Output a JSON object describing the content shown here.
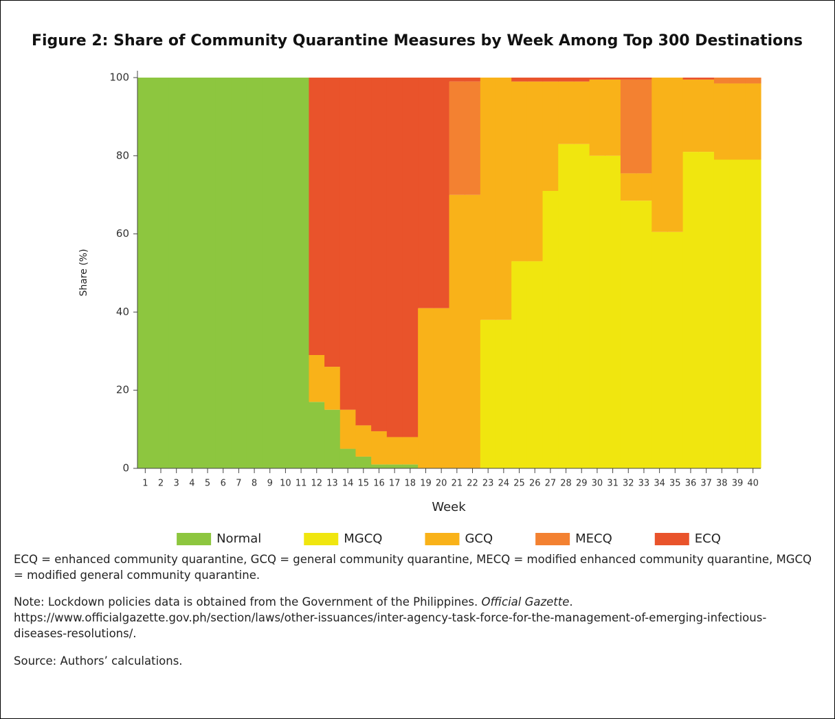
{
  "chart_data": {
    "type": "stacked_step_area",
    "title": "Figure 2: Share of Community Quarantine Measures by Week Among Top 300 Destinations",
    "x_label": "Week",
    "y_label": "Share (%)",
    "categories": [
      "1",
      "2",
      "3",
      "4",
      "5",
      "6",
      "7",
      "8",
      "9",
      "10",
      "11",
      "12",
      "13",
      "14",
      "15",
      "16",
      "17",
      "18",
      "19",
      "20",
      "21",
      "22",
      "23",
      "24",
      "25",
      "26",
      "27",
      "28",
      "29",
      "30",
      "31",
      "32",
      "33",
      "34",
      "35",
      "36",
      "37",
      "38",
      "39",
      "40"
    ],
    "ylim": [
      0,
      100
    ],
    "yticks": [
      0,
      20,
      40,
      60,
      80,
      100
    ],
    "series": [
      {
        "name": "Normal",
        "color": "#8dc63f",
        "values": [
          100,
          100,
          100,
          100,
          100,
          100,
          100,
          100,
          100,
          100,
          100,
          17,
          15,
          5,
          3,
          1,
          1,
          1,
          0,
          0,
          0,
          0,
          0,
          0,
          0,
          0,
          0,
          0,
          0,
          0,
          0,
          0,
          0,
          0,
          0,
          0,
          0,
          0,
          0,
          0
        ]
      },
      {
        "name": "MGCQ",
        "color": "#f0e60f",
        "values": [
          0,
          0,
          0,
          0,
          0,
          0,
          0,
          0,
          0,
          0,
          0,
          0,
          0,
          0,
          0,
          0,
          0,
          0,
          0,
          0,
          0,
          0,
          38,
          38,
          53,
          53,
          71,
          83,
          83,
          80,
          80,
          68.5,
          68.5,
          60.5,
          60.5,
          81,
          81,
          79,
          79,
          79
        ]
      },
      {
        "name": "GCQ",
        "color": "#f9b219",
        "values": [
          0,
          0,
          0,
          0,
          0,
          0,
          0,
          0,
          0,
          0,
          0,
          12,
          11,
          10,
          8,
          8.5,
          7,
          7,
          41,
          41,
          70,
          70,
          62,
          62,
          46,
          46,
          28,
          16,
          16,
          19.5,
          19.5,
          7,
          7,
          39.5,
          39.5,
          18.5,
          18.5,
          19.5,
          19.5,
          19.5
        ]
      },
      {
        "name": "MECQ",
        "color": "#f38131",
        "values": [
          0,
          0,
          0,
          0,
          0,
          0,
          0,
          0,
          0,
          0,
          0,
          0,
          0,
          0,
          0,
          0,
          0,
          0,
          0,
          0,
          29,
          29,
          0,
          0,
          0,
          0,
          0,
          0,
          0,
          0,
          0,
          24,
          24,
          0,
          0,
          0,
          0,
          1.5,
          1.5,
          1.5
        ]
      },
      {
        "name": "ECQ",
        "color": "#e9532b",
        "values": [
          0,
          0,
          0,
          0,
          0,
          0,
          0,
          0,
          0,
          0,
          0,
          71,
          74,
          85,
          89,
          90.5,
          92,
          92,
          59,
          59,
          1,
          1,
          0,
          0,
          1,
          1,
          1,
          1,
          1,
          0.5,
          0.5,
          0.5,
          0.5,
          0,
          0,
          0.5,
          0.5,
          0,
          0,
          0
        ]
      }
    ],
    "notes": [
      [
        "ECQ = enhanced community quarantine, GCQ = general community quarantine, MECQ = modified enhanced community quarantine, MGCQ = modified general community quarantine."
      ],
      [
        "Note: Lockdown policies data is obtained from the Government of the Philippines. ",
        "Official Gazette",
        ". https://www.officialgazette.gov.ph/section/laws/other-issuances/inter-agency-task-force-for-the-management-of-emerging-infectious-diseases-resolutions/."
      ],
      [
        "Source: Authors’ calculations."
      ]
    ]
  }
}
